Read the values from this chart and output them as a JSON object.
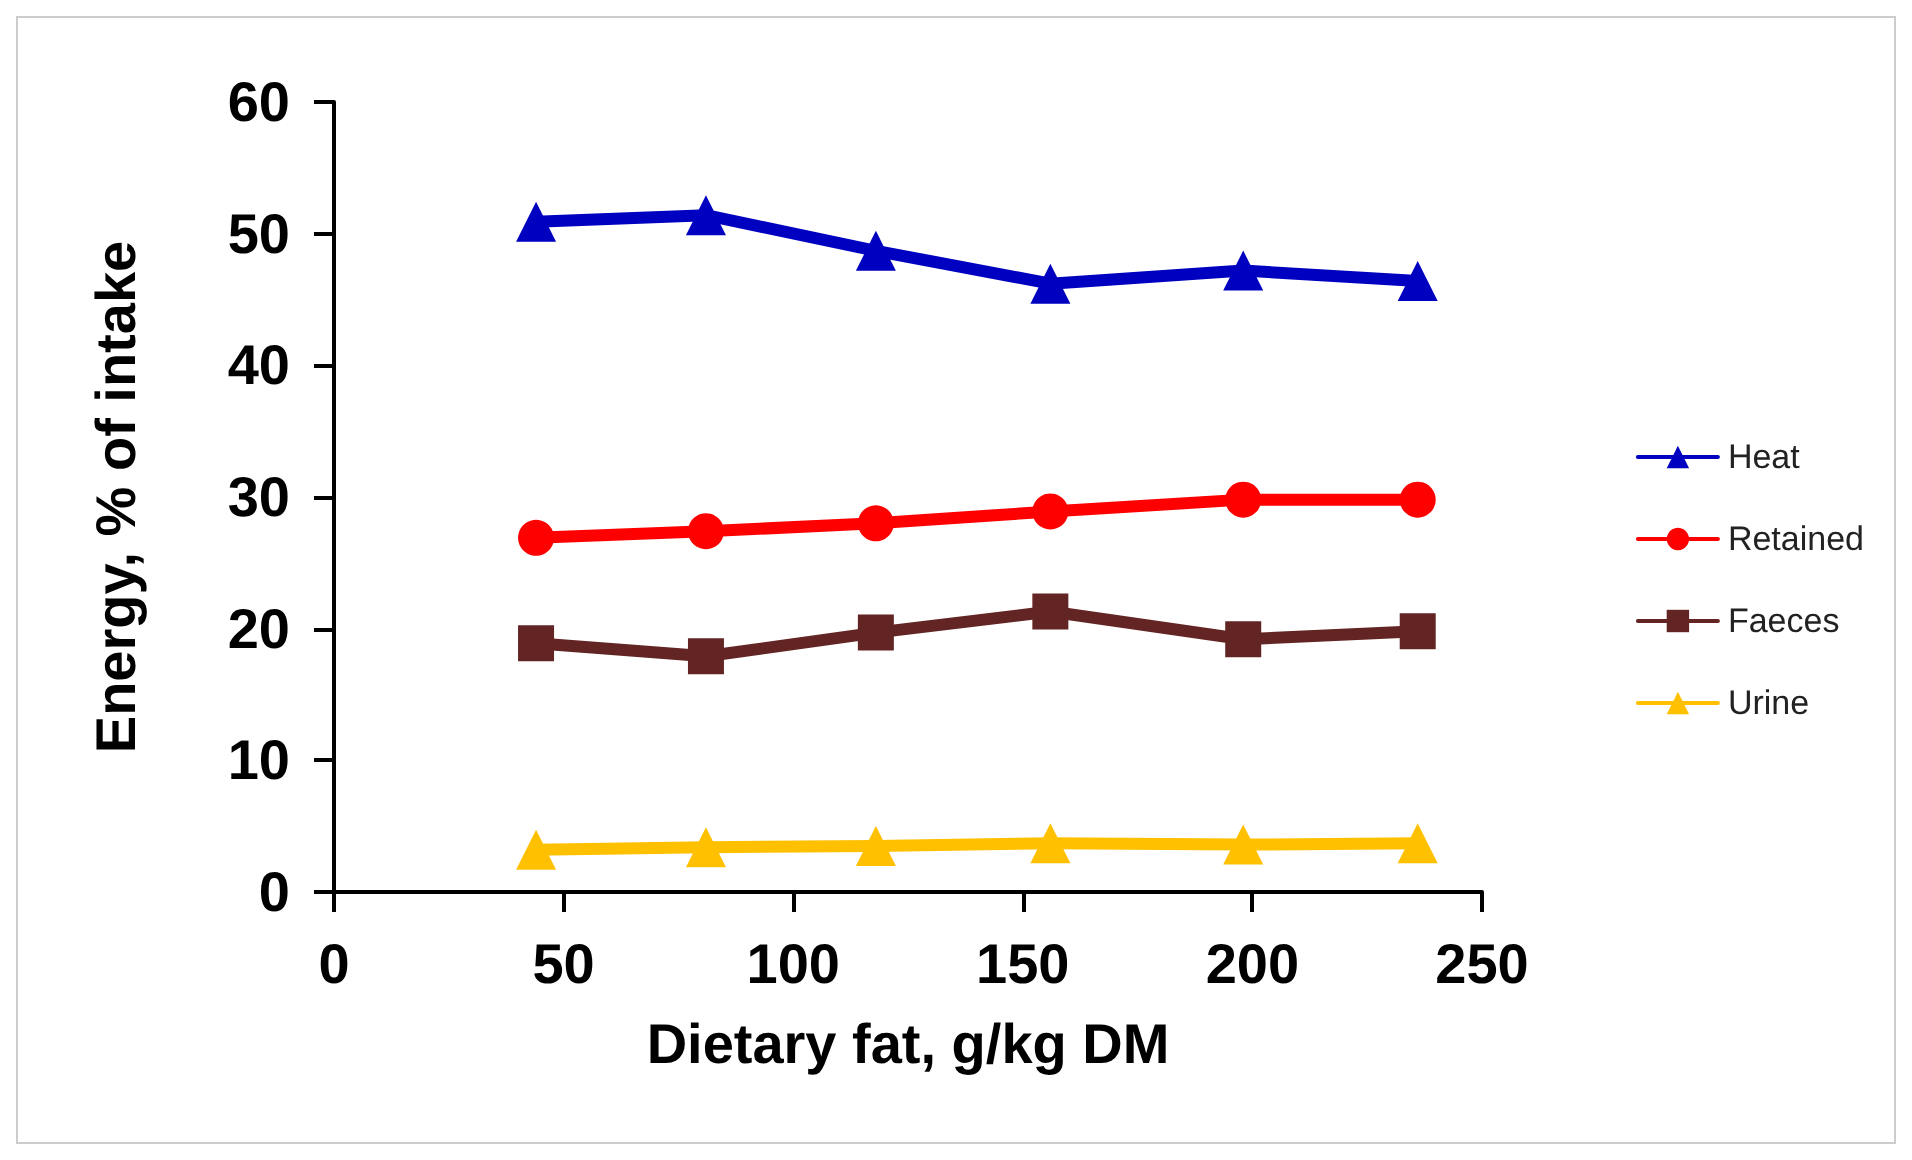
{
  "chart_data": {
    "type": "line",
    "xlabel": "Dietary fat, g/kg DM",
    "ylabel": "Energy, % of intake",
    "x": [
      44,
      81,
      118,
      156,
      198,
      236
    ],
    "series": [
      {
        "name": "Heat",
        "color": "#0000c0",
        "marker": "triangle",
        "values": [
          50.9,
          51.4,
          48.7,
          46.2,
          47.2,
          46.4
        ]
      },
      {
        "name": "Retained",
        "color": "#ff0000",
        "marker": "circle",
        "values": [
          26.9,
          27.4,
          28.0,
          28.9,
          29.8,
          29.8
        ]
      },
      {
        "name": "Faeces",
        "color": "#632523",
        "marker": "square",
        "values": [
          18.9,
          17.9,
          19.7,
          21.3,
          19.2,
          19.8
        ]
      },
      {
        "name": "Urine",
        "color": "#ffc000",
        "marker": "triangle",
        "values": [
          3.2,
          3.4,
          3.5,
          3.7,
          3.6,
          3.7
        ]
      }
    ],
    "xlim": [
      0,
      250
    ],
    "xticks": [
      0,
      50,
      100,
      150,
      200,
      250
    ],
    "ylim": [
      0,
      60
    ],
    "yticks": [
      0,
      10,
      20,
      30,
      40,
      50,
      60
    ],
    "grid": false,
    "legend": "right",
    "line_style": "solid"
  }
}
